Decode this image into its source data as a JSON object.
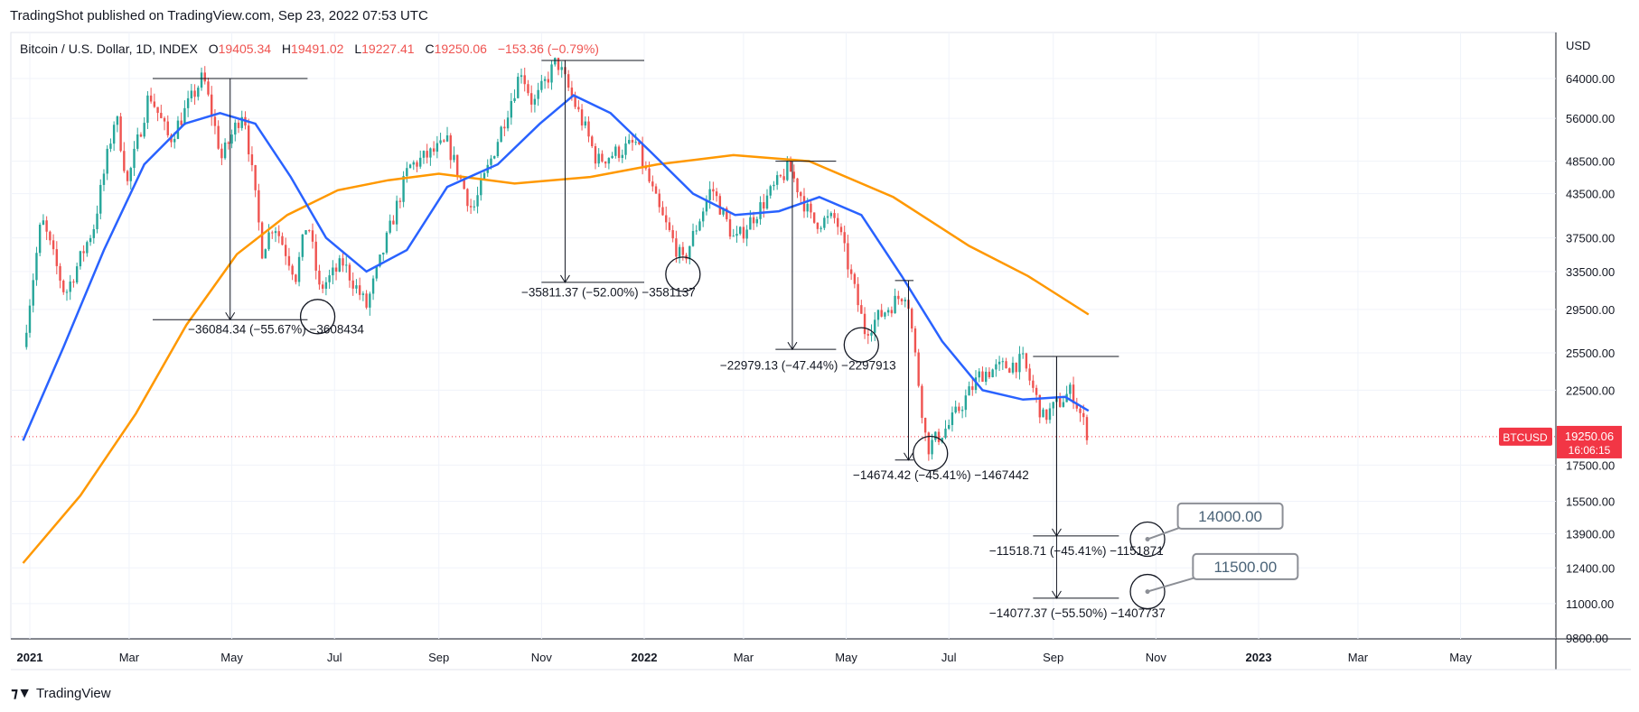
{
  "header": {
    "caption": "TradingShot published on TradingView.com, Sep 23, 2022 07:53 UTC"
  },
  "footer": {
    "brand": "TradingView"
  },
  "chart_data": {
    "type": "candlestick",
    "legend": {
      "symbol": "Bitcoin / U.S. Dollar, 1D, INDEX",
      "open_label": "O",
      "open": "19405.34",
      "high_label": "H",
      "high": "19491.02",
      "low_label": "L",
      "low": "19227.41",
      "close_label": "C",
      "close": "19250.06",
      "change": "−153.36 (−0.79%)"
    },
    "currency": "USD",
    "y_ticks": [
      {
        "value": 64000,
        "label": "64000.00"
      },
      {
        "value": 56000,
        "label": "56000.00"
      },
      {
        "value": 48500,
        "label": "48500.00"
      },
      {
        "value": 43500,
        "label": "43500.00"
      },
      {
        "value": 37500,
        "label": "37500.00"
      },
      {
        "value": 33500,
        "label": "33500.00"
      },
      {
        "value": 29500,
        "label": "29500.00"
      },
      {
        "value": 25500,
        "label": "25500.00"
      },
      {
        "value": 22500,
        "label": "22500.00"
      },
      {
        "value": 17500,
        "label": "17500.00"
      },
      {
        "value": 15500,
        "label": "15500.00"
      },
      {
        "value": 13900,
        "label": "13900.00"
      },
      {
        "value": 12400,
        "label": "12400.00"
      },
      {
        "value": 11000,
        "label": "11000.00"
      },
      {
        "value": 9800,
        "label": "9800.00"
      }
    ],
    "x_ticks": [
      {
        "date": "2021-01-01",
        "label": "2021",
        "bold": true
      },
      {
        "date": "2021-03-01",
        "label": "Mar"
      },
      {
        "date": "2021-05-01",
        "label": "May"
      },
      {
        "date": "2021-07-01",
        "label": "Jul"
      },
      {
        "date": "2021-09-01",
        "label": "Sep"
      },
      {
        "date": "2021-11-01",
        "label": "Nov"
      },
      {
        "date": "2022-01-01",
        "label": "2022",
        "bold": true
      },
      {
        "date": "2022-03-01",
        "label": "Mar"
      },
      {
        "date": "2022-05-01",
        "label": "May"
      },
      {
        "date": "2022-07-01",
        "label": "Jul"
      },
      {
        "date": "2022-09-01",
        "label": "Sep"
      },
      {
        "date": "2022-11-01",
        "label": "Nov"
      },
      {
        "date": "2023-01-01",
        "label": "2023",
        "bold": true
      },
      {
        "date": "2023-03-01",
        "label": "Mar"
      },
      {
        "date": "2023-05-01",
        "label": "May"
      }
    ],
    "price_line": {
      "value": 19250.06,
      "label": "BTCUSD",
      "price_label": "19250.06",
      "countdown": "16:06:15",
      "color": "#f23645"
    },
    "colors": {
      "up": "#26a69a",
      "down": "#ef5350",
      "ma_fast": "#2962ff",
      "ma_slow": "#ff9800"
    },
    "price_path": [
      {
        "date": "2020-12-28",
        "price": 26000
      },
      {
        "date": "2021-01-08",
        "price": 40000
      },
      {
        "date": "2021-01-22",
        "price": 31000
      },
      {
        "date": "2021-02-08",
        "price": 39000
      },
      {
        "date": "2021-02-21",
        "price": 57000
      },
      {
        "date": "2021-02-28",
        "price": 45000
      },
      {
        "date": "2021-03-13",
        "price": 61000
      },
      {
        "date": "2021-03-25",
        "price": 52000
      },
      {
        "date": "2021-04-14",
        "price": 64500
      },
      {
        "date": "2021-04-25",
        "price": 49000
      },
      {
        "date": "2021-05-08",
        "price": 58000
      },
      {
        "date": "2021-05-19",
        "price": 36000
      },
      {
        "date": "2021-05-26",
        "price": 39500
      },
      {
        "date": "2021-06-08",
        "price": 33000
      },
      {
        "date": "2021-06-15",
        "price": 40000
      },
      {
        "date": "2021-06-22",
        "price": 31500
      },
      {
        "date": "2021-07-06",
        "price": 34500
      },
      {
        "date": "2021-07-20",
        "price": 29800
      },
      {
        "date": "2021-08-14",
        "price": 47500
      },
      {
        "date": "2021-09-06",
        "price": 51500
      },
      {
        "date": "2021-09-21",
        "price": 41000
      },
      {
        "date": "2021-10-01",
        "price": 48000
      },
      {
        "date": "2021-10-20",
        "price": 66000
      },
      {
        "date": "2021-10-27",
        "price": 58500
      },
      {
        "date": "2021-11-10",
        "price": 68000
      },
      {
        "date": "2021-11-27",
        "price": 54000
      },
      {
        "date": "2021-12-04",
        "price": 48500
      },
      {
        "date": "2021-12-27",
        "price": 51500
      },
      {
        "date": "2022-01-10",
        "price": 41000
      },
      {
        "date": "2022-01-24",
        "price": 34500
      },
      {
        "date": "2022-02-10",
        "price": 44500
      },
      {
        "date": "2022-02-24",
        "price": 37000
      },
      {
        "date": "2022-03-28",
        "price": 47500
      },
      {
        "date": "2022-04-11",
        "price": 39500
      },
      {
        "date": "2022-04-25",
        "price": 40000
      },
      {
        "date": "2022-05-12",
        "price": 27500
      },
      {
        "date": "2022-06-06",
        "price": 31500
      },
      {
        "date": "2022-06-18",
        "price": 18500
      },
      {
        "date": "2022-07-01",
        "price": 20000
      },
      {
        "date": "2022-07-20",
        "price": 23800
      },
      {
        "date": "2022-08-14",
        "price": 24800
      },
      {
        "date": "2022-08-26",
        "price": 20500
      },
      {
        "date": "2022-09-12",
        "price": 22500
      },
      {
        "date": "2022-09-22",
        "price": 19250
      }
    ],
    "ma_fast_path": [
      {
        "date": "2020-12-28",
        "price": 19000
      },
      {
        "date": "2021-01-21",
        "price": 26000
      },
      {
        "date": "2021-02-14",
        "price": 36000
      },
      {
        "date": "2021-03-10",
        "price": 48000
      },
      {
        "date": "2021-04-03",
        "price": 55000
      },
      {
        "date": "2021-04-24",
        "price": 57000
      },
      {
        "date": "2021-05-15",
        "price": 55000
      },
      {
        "date": "2021-06-05",
        "price": 46000
      },
      {
        "date": "2021-06-26",
        "price": 37500
      },
      {
        "date": "2021-07-20",
        "price": 33500
      },
      {
        "date": "2021-08-13",
        "price": 36000
      },
      {
        "date": "2021-09-06",
        "price": 44500
      },
      {
        "date": "2021-10-06",
        "price": 48000
      },
      {
        "date": "2021-10-31",
        "price": 55000
      },
      {
        "date": "2021-11-20",
        "price": 60500
      },
      {
        "date": "2021-12-12",
        "price": 57000
      },
      {
        "date": "2022-01-05",
        "price": 50000
      },
      {
        "date": "2022-01-30",
        "price": 43500
      },
      {
        "date": "2022-02-24",
        "price": 40500
      },
      {
        "date": "2022-03-22",
        "price": 41000
      },
      {
        "date": "2022-04-15",
        "price": 43000
      },
      {
        "date": "2022-05-10",
        "price": 40500
      },
      {
        "date": "2022-06-03",
        "price": 33000
      },
      {
        "date": "2022-06-27",
        "price": 26500
      },
      {
        "date": "2022-07-21",
        "price": 22500
      },
      {
        "date": "2022-08-14",
        "price": 21800
      },
      {
        "date": "2022-09-08",
        "price": 22000
      },
      {
        "date": "2022-09-22",
        "price": 21000
      }
    ],
    "ma_slow_path": [
      {
        "date": "2020-12-28",
        "price": 12600
      },
      {
        "date": "2021-01-31",
        "price": 15800
      },
      {
        "date": "2021-03-05",
        "price": 20800
      },
      {
        "date": "2021-04-04",
        "price": 28000
      },
      {
        "date": "2021-05-04",
        "price": 35500
      },
      {
        "date": "2021-06-03",
        "price": 40500
      },
      {
        "date": "2021-07-03",
        "price": 44000
      },
      {
        "date": "2021-08-02",
        "price": 45500
      },
      {
        "date": "2021-09-01",
        "price": 46500
      },
      {
        "date": "2021-10-16",
        "price": 45000
      },
      {
        "date": "2021-11-30",
        "price": 46000
      },
      {
        "date": "2022-01-09",
        "price": 48000
      },
      {
        "date": "2022-02-23",
        "price": 49500
      },
      {
        "date": "2022-04-09",
        "price": 48500
      },
      {
        "date": "2022-05-29",
        "price": 43000
      },
      {
        "date": "2022-07-13",
        "price": 36500
      },
      {
        "date": "2022-08-17",
        "price": 33000
      },
      {
        "date": "2022-09-22",
        "price": 29000
      }
    ],
    "measures": [
      {
        "date": "2021-04-30",
        "x1": "2021-03-15",
        "x2": "2021-06-15",
        "from": 64000,
        "to": 28500,
        "label": "−36084.34 (−55.67%) −3608434",
        "label_date": "2021-04-05",
        "label_price": 27200
      },
      {
        "date": "2021-11-15",
        "x1": "2021-11-01",
        "x2": "2022-01-01",
        "from": 68000,
        "to": 32300,
        "label": "−35811.37 (−52.00%) −3581137",
        "label_date": "2021-10-20",
        "label_price": 30800
      },
      {
        "date": "2022-03-30",
        "x1": "2022-03-20",
        "x2": "2022-04-25",
        "from": 48500,
        "to": 25800,
        "label": "−22979.13 (−47.44%) −2297913",
        "label_date": "2022-02-15",
        "label_price": 24100
      },
      {
        "date": "2022-06-07",
        "x1": "2022-05-30",
        "x2": "2022-06-10",
        "from": 32500,
        "to": 17800,
        "label": "−14674.42 (−45.41%) −1467442",
        "label_date": "2022-05-05",
        "label_price": 16700
      },
      {
        "date": "2022-09-03",
        "x1": "2022-08-20",
        "x2": "2022-10-10",
        "from": 25200,
        "to": 13800,
        "label": "−11518.71 (−45.41%) −1151871",
        "label_date": "2022-07-25",
        "label_price": 12950
      },
      {
        "date": "2022-09-03",
        "x1": "2022-08-20",
        "x2": "2022-10-10",
        "from": 25200,
        "to": 11200,
        "label": "−14077.37 (−55.50%) −1407737",
        "label_date": "2022-07-25",
        "label_price": 10500
      }
    ],
    "circles": [
      {
        "date": "2021-06-21",
        "price": 28800
      },
      {
        "date": "2022-01-24",
        "price": 33200
      },
      {
        "date": "2022-05-10",
        "price": 26200
      },
      {
        "date": "2022-06-20",
        "price": 18200
      },
      {
        "date": "2022-10-27",
        "price": 13650
      },
      {
        "date": "2022-10-27",
        "price": 11450
      }
    ],
    "callouts": [
      {
        "date": "2022-10-27",
        "price": 13650,
        "label": "14000.00",
        "box_date": "2022-11-14",
        "box_price": 14750
      },
      {
        "date": "2022-10-27",
        "price": 11450,
        "label": "11500.00",
        "box_date": "2022-11-23",
        "box_price": 12450
      }
    ]
  }
}
